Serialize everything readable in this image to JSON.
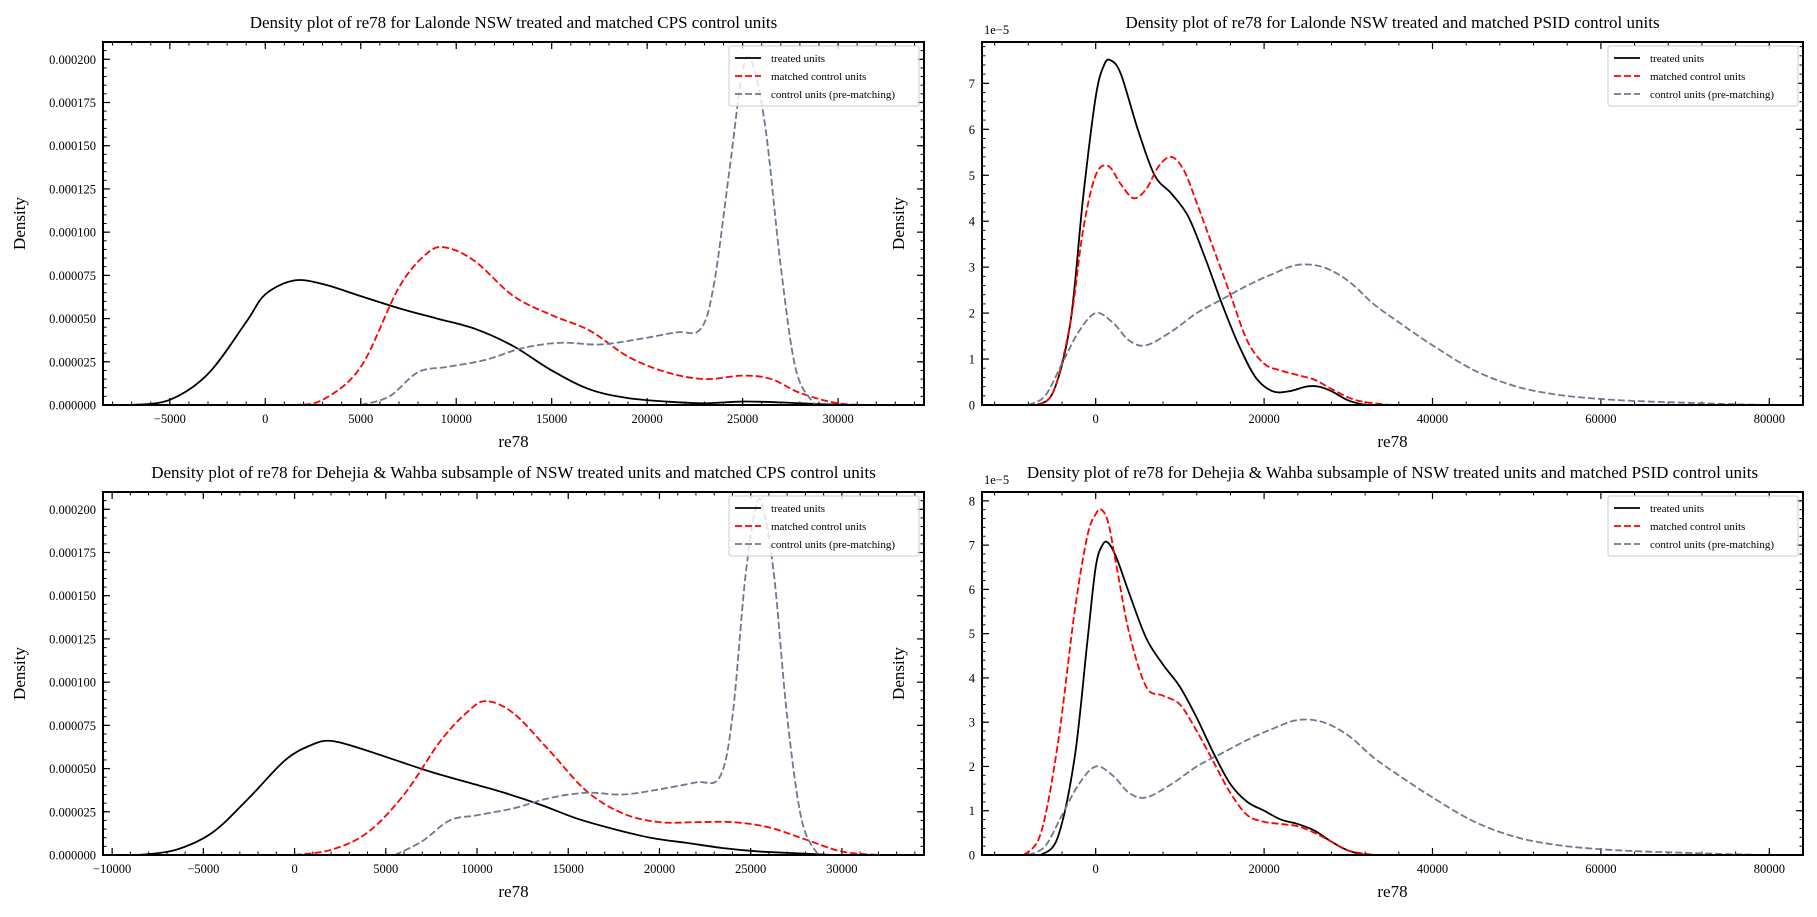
{
  "chart_data": [
    {
      "type": "line",
      "title": "Density plot of  re78 for Lalonde NSW treated and matched CPS control units",
      "xlabel": "re78",
      "ylabel": "Density",
      "xlim": [
        -8500,
        34500
      ],
      "ylim": [
        0,
        0.00021
      ],
      "y_offset_label": "",
      "xticks": [
        -5000,
        0,
        5000,
        10000,
        15000,
        20000,
        25000,
        30000
      ],
      "xtick_labels": [
        "−5000",
        "0",
        "5000",
        "10000",
        "15000",
        "20000",
        "25000",
        "30000"
      ],
      "yticks": [
        0,
        2.5e-05,
        5e-05,
        7.5e-05,
        0.0001,
        0.000125,
        0.00015,
        0.000175,
        0.0002
      ],
      "ytick_labels": [
        "0.000000",
        "0.000025",
        "0.000050",
        "0.000075",
        "0.000100",
        "0.000125",
        "0.000150",
        "0.000175",
        "0.000200"
      ],
      "legend_position": "top-right",
      "series": [
        {
          "name": "treated units",
          "color": "#000000",
          "style": "solid",
          "x": [
            -7000,
            -5000,
            -3000,
            -1000,
            0,
            1500,
            3000,
            5000,
            7000,
            9000,
            11000,
            13000,
            15000,
            17000,
            19000,
            21000,
            23000,
            25000,
            27000,
            29000,
            31000
          ],
          "y": [
            0,
            3e-06,
            1.8e-05,
            4.8e-05,
            6.4e-05,
            7.2e-05,
            7e-05,
            6.3e-05,
            5.6e-05,
            5e-05,
            4.4e-05,
            3.4e-05,
            2e-05,
            9e-06,
            4e-06,
            2e-06,
            1e-06,
            2e-06,
            1.5e-06,
            5e-07,
            0
          ]
        },
        {
          "name": "matched control units",
          "color": "#ff0000",
          "style": "dashed",
          "x": [
            1500,
            3000,
            5000,
            7000,
            8500,
            9500,
            11000,
            13000,
            15000,
            17000,
            19000,
            21000,
            23000,
            25000,
            26500,
            28000,
            30000,
            32000
          ],
          "y": [
            0,
            3e-06,
            2.2e-05,
            6.8e-05,
            8.8e-05,
            9.1e-05,
            8.3e-05,
            6.3e-05,
            5.2e-05,
            4.3e-05,
            2.8e-05,
            1.9e-05,
            1.5e-05,
            1.7e-05,
            1.5e-05,
            7e-06,
            1e-06,
            0
          ]
        },
        {
          "name": "control units (pre-matching)",
          "color": "#6b7a8f",
          "style": "dashed",
          "x": [
            5000,
            6500,
            8000,
            9500,
            11500,
            13500,
            15500,
            17500,
            19500,
            21500,
            22800,
            23500,
            24300,
            25000,
            25500,
            26200,
            27000,
            27800,
            28800
          ],
          "y": [
            0,
            5e-06,
            1.9e-05,
            2.2e-05,
            2.6e-05,
            3.3e-05,
            3.6e-05,
            3.5e-05,
            3.8e-05,
            4.2e-05,
            4.4e-05,
            7e-05,
            0.000135,
            0.000193,
            0.000198,
            0.00016,
            8e-05,
            2e-05,
            0
          ]
        }
      ]
    },
    {
      "type": "line",
      "title": "Density plot of  re78 for Lalonde NSW treated and matched PSID control units",
      "xlabel": "re78",
      "ylabel": "Density",
      "xlim": [
        -13500,
        84000
      ],
      "ylim": [
        0,
        7.9
      ],
      "y_offset_label": "1e−5",
      "xticks": [
        0,
        20000,
        40000,
        60000,
        80000
      ],
      "xtick_labels": [
        "0",
        "20000",
        "40000",
        "60000",
        "80000"
      ],
      "yticks": [
        0,
        1,
        2,
        3,
        4,
        5,
        6,
        7
      ],
      "ytick_labels": [
        "0",
        "1",
        "2",
        "3",
        "4",
        "5",
        "6",
        "7"
      ],
      "legend_position": "top-right",
      "series": [
        {
          "name": "treated units",
          "color": "#000000",
          "style": "solid",
          "x": [
            -7000,
            -5000,
            -3000,
            -1500,
            0,
            1000,
            1800,
            3000,
            5000,
            7000,
            9000,
            11000,
            13000,
            15000,
            17000,
            19000,
            21000,
            23000,
            25000,
            26500,
            28000,
            30000,
            32000
          ],
          "y": [
            0,
            0.3,
            1.8,
            4.5,
            6.7,
            7.4,
            7.5,
            7.2,
            6.0,
            5.0,
            4.6,
            4.1,
            3.2,
            2.2,
            1.3,
            0.6,
            0.3,
            0.3,
            0.4,
            0.4,
            0.3,
            0.1,
            0
          ]
        },
        {
          "name": "matched control units",
          "color": "#ff0000",
          "style": "dashed",
          "x": [
            -7000,
            -5000,
            -3000,
            -1500,
            0,
            1500,
            3000,
            4500,
            6000,
            7500,
            9000,
            10500,
            12000,
            14000,
            16000,
            18000,
            20000,
            22000,
            24000,
            26000,
            28000,
            31000,
            35000
          ],
          "y": [
            0,
            0.3,
            1.8,
            3.8,
            5.0,
            5.2,
            4.8,
            4.5,
            4.7,
            5.2,
            5.4,
            5.1,
            4.4,
            3.4,
            2.4,
            1.4,
            0.9,
            0.75,
            0.65,
            0.55,
            0.35,
            0.1,
            0
          ]
        },
        {
          "name": "control units (pre-matching)",
          "color": "#6b7a8f",
          "style": "dashed",
          "x": [
            -8000,
            -6000,
            -4000,
            -2000,
            0,
            2000,
            4000,
            6000,
            9000,
            12000,
            15000,
            18000,
            21000,
            24000,
            27000,
            30000,
            33000,
            36000,
            40000,
            45000,
            50000,
            55000,
            60000,
            65000,
            70000,
            75000,
            80000
          ],
          "y": [
            0,
            0.2,
            0.9,
            1.6,
            2.0,
            1.8,
            1.4,
            1.3,
            1.6,
            2.0,
            2.3,
            2.6,
            2.85,
            3.05,
            3.0,
            2.7,
            2.2,
            1.8,
            1.3,
            0.75,
            0.4,
            0.22,
            0.13,
            0.08,
            0.05,
            0.02,
            0
          ]
        }
      ]
    },
    {
      "type": "line",
      "title": "Density plot of re78 for Dehejia & Wahba subsample of NSW treated units and matched CPS control units",
      "xlabel": "re78",
      "ylabel": "Density",
      "xlim": [
        -10500,
        34500
      ],
      "ylim": [
        0,
        0.00021
      ],
      "y_offset_label": "",
      "xticks": [
        -10000,
        -5000,
        0,
        5000,
        10000,
        15000,
        20000,
        25000,
        30000
      ],
      "xtick_labels": [
        "−10000",
        "−5000",
        "0",
        "5000",
        "10000",
        "15000",
        "20000",
        "25000",
        "30000"
      ],
      "yticks": [
        0,
        2.5e-05,
        5e-05,
        7.5e-05,
        0.0001,
        0.000125,
        0.00015,
        0.000175,
        0.0002
      ],
      "ytick_labels": [
        "0.000000",
        "0.000025",
        "0.000050",
        "0.000075",
        "0.000100",
        "0.000125",
        "0.000150",
        "0.000175",
        "0.000200"
      ],
      "legend_position": "top-right",
      "series": [
        {
          "name": "treated units",
          "color": "#000000",
          "style": "solid",
          "x": [
            -8500,
            -6500,
            -4500,
            -2500,
            -500,
            1000,
            2000,
            3500,
            5500,
            7500,
            9500,
            11500,
            13500,
            15500,
            17500,
            19500,
            21500,
            23500,
            25500,
            27500,
            29500
          ],
          "y": [
            0,
            3e-06,
            1.3e-05,
            3.3e-05,
            5.5e-05,
            6.4e-05,
            6.6e-05,
            6.2e-05,
            5.5e-05,
            4.8e-05,
            4.2e-05,
            3.6e-05,
            2.9e-05,
            2.1e-05,
            1.5e-05,
            1e-05,
            7e-06,
            4e-06,
            2e-06,
            1e-06,
            0
          ]
        },
        {
          "name": "matched control units",
          "color": "#ff0000",
          "style": "dashed",
          "x": [
            0,
            2000,
            4000,
            6000,
            8000,
            9500,
            10500,
            12000,
            14000,
            16000,
            18000,
            20000,
            22000,
            24000,
            26000,
            28000,
            30000,
            32000
          ],
          "y": [
            0,
            3e-06,
            1.3e-05,
            3.5e-05,
            6.6e-05,
            8.3e-05,
            8.9e-05,
            8.2e-05,
            6e-05,
            3.7e-05,
            2.4e-05,
            1.9e-05,
            1.9e-05,
            1.9e-05,
            1.6e-05,
            9e-06,
            2e-06,
            0
          ]
        },
        {
          "name": "control units (pre-matching)",
          "color": "#6b7a8f",
          "style": "dashed",
          "x": [
            5500,
            7000,
            8500,
            10000,
            12000,
            14000,
            16000,
            18000,
            20000,
            22000,
            23300,
            24000,
            24700,
            25300,
            25700,
            26300,
            27000,
            27800,
            28700
          ],
          "y": [
            0,
            8e-06,
            2e-05,
            2.3e-05,
            2.7e-05,
            3.3e-05,
            3.6e-05,
            3.5e-05,
            3.8e-05,
            4.2e-05,
            4.5e-05,
            8e-05,
            0.00016,
            0.000202,
            0.0002,
            0.00016,
            8e-05,
            2e-05,
            0
          ]
        }
      ]
    },
    {
      "type": "line",
      "title": "Density plot of re78 for Dehejia & Wahba subsample of NSW treated units and matched PSID control units",
      "xlabel": "re78",
      "ylabel": "Density",
      "xlim": [
        -13500,
        84000
      ],
      "ylim": [
        0,
        8.2
      ],
      "y_offset_label": "1e−5",
      "xticks": [
        0,
        20000,
        40000,
        60000,
        80000
      ],
      "xtick_labels": [
        "0",
        "20000",
        "40000",
        "60000",
        "80000"
      ],
      "yticks": [
        0,
        1,
        2,
        3,
        4,
        5,
        6,
        7,
        8
      ],
      "ytick_labels": [
        "0",
        "1",
        "2",
        "3",
        "4",
        "5",
        "6",
        "7",
        "8"
      ],
      "legend_position": "top-right",
      "series": [
        {
          "name": "treated units",
          "color": "#000000",
          "style": "solid",
          "x": [
            -6500,
            -4500,
            -2500,
            -1000,
            0,
            800,
            1500,
            2500,
            4000,
            6000,
            8000,
            10000,
            12000,
            14000,
            16000,
            18000,
            20000,
            22000,
            24000,
            26000,
            28000,
            30000,
            32000
          ],
          "y": [
            0,
            0.4,
            2.2,
            4.8,
            6.5,
            7.0,
            7.05,
            6.7,
            5.9,
            4.9,
            4.3,
            3.8,
            3.1,
            2.3,
            1.6,
            1.2,
            1.0,
            0.8,
            0.7,
            0.55,
            0.3,
            0.1,
            0
          ]
        },
        {
          "name": "matched control units",
          "color": "#ff0000",
          "style": "dashed",
          "x": [
            -8500,
            -6500,
            -4500,
            -2500,
            -1000,
            0,
            700,
            1500,
            2500,
            4000,
            6000,
            8000,
            10000,
            12000,
            14000,
            16000,
            18000,
            20000,
            22000,
            24000,
            26000,
            28000,
            30000,
            33000
          ],
          "y": [
            0,
            0.5,
            2.5,
            5.5,
            7.2,
            7.7,
            7.8,
            7.5,
            6.5,
            5.0,
            3.8,
            3.6,
            3.4,
            2.8,
            2.1,
            1.4,
            0.9,
            0.75,
            0.7,
            0.65,
            0.5,
            0.3,
            0.1,
            0
          ]
        },
        {
          "name": "control units (pre-matching)",
          "color": "#6b7a8f",
          "style": "dashed",
          "x": [
            -8000,
            -6000,
            -4000,
            -2000,
            0,
            2000,
            4000,
            6000,
            9000,
            12000,
            15000,
            18000,
            21000,
            24000,
            27000,
            30000,
            33000,
            36000,
            40000,
            45000,
            50000,
            55000,
            60000,
            65000,
            70000,
            75000,
            80000
          ],
          "y": [
            0,
            0.2,
            0.9,
            1.6,
            2.0,
            1.8,
            1.4,
            1.3,
            1.6,
            2.0,
            2.3,
            2.6,
            2.85,
            3.05,
            3.0,
            2.7,
            2.2,
            1.8,
            1.3,
            0.75,
            0.4,
            0.22,
            0.13,
            0.08,
            0.05,
            0.02,
            0
          ]
        }
      ]
    }
  ]
}
